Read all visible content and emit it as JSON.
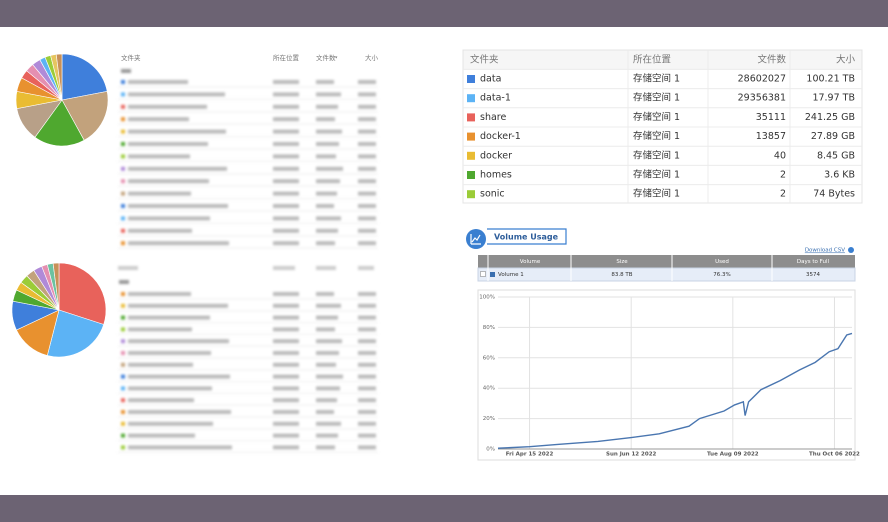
{
  "left_table_header": [
    "文件夹",
    "所在位置",
    "文件数",
    "大小"
  ],
  "folder_table": {
    "columns": [
      "文件夹",
      "所在位置",
      "文件数",
      "大小"
    ],
    "colors": [
      "#3f7fdb",
      "#5cb3f5",
      "#e8625b",
      "#e8912f",
      "#e9bc33",
      "#4fa82f",
      "#9bcc38"
    ],
    "rows": [
      [
        "data",
        "存储空间 1",
        28602027,
        "100.21 TB"
      ],
      [
        "data-1",
        "存储空间 1",
        29356381,
        "17.97 TB"
      ],
      [
        "share",
        "存储空间 1",
        35111,
        "241.25 GB"
      ],
      [
        "docker-1",
        "存储空间 1",
        13857,
        "27.89 GB"
      ],
      [
        "docker",
        "存储空间 1",
        40,
        "8.45 GB"
      ],
      [
        "homes",
        "存储空间 1",
        2,
        "3.6 KB"
      ],
      [
        "sonic",
        "存储空间 1",
        2,
        "74 Bytes"
      ]
    ]
  },
  "volume_usage": {
    "title": "Volume Usage",
    "download": "Download CSV",
    "table": {
      "columns": [
        "Volume",
        "Size",
        "Used",
        "Days to Full"
      ],
      "rows": [
        [
          "Volume 1",
          "83.8 TB",
          "76.3%",
          3574
        ]
      ]
    }
  },
  "chart_data": [
    {
      "type": "pie",
      "categories": [
        null,
        null,
        null,
        null,
        null,
        null,
        null,
        null,
        null,
        null,
        null,
        null,
        null
      ],
      "values": [
        22,
        20,
        18,
        12,
        6,
        5,
        3,
        3,
        3,
        2,
        2,
        2,
        2
      ],
      "colors": [
        "#3f7fdb",
        "#c2a27c",
        "#4fa82f",
        "#b8a088",
        "#e9bc33",
        "#e8912f",
        "#e8625b",
        "#e58fb0",
        "#b08ad8",
        "#5cb3f5",
        "#9bcc38",
        "#e6c560",
        "#c89058"
      ]
    },
    {
      "type": "pie",
      "categories": [
        null,
        null,
        null,
        null,
        null,
        null,
        null,
        null,
        null,
        null,
        null,
        null
      ],
      "values": [
        30,
        24,
        14,
        10,
        4,
        3,
        3,
        3,
        3,
        2,
        2,
        2
      ],
      "colors": [
        "#e8625b",
        "#5cb3f5",
        "#e8912f",
        "#3f7fdb",
        "#4fa82f",
        "#e9bc33",
        "#9bcc38",
        "#c2a27c",
        "#b08ad8",
        "#e58fb0",
        "#6cc2a0",
        "#c89058"
      ]
    },
    {
      "type": "line",
      "x": [
        "2022-03-28",
        "2022-04-15",
        "2022-05-01",
        "2022-05-24",
        "2022-06-12",
        "2022-06-28",
        "2022-07-15",
        "2022-07-21",
        "2022-08-04",
        "2022-08-10",
        "2022-08-15",
        "2022-08-16",
        "2022-08-18",
        "2022-08-25",
        "2022-09-05",
        "2022-09-16",
        "2022-09-25",
        "2022-10-03",
        "2022-10-08",
        "2022-10-13",
        "2022-10-16"
      ],
      "series": [
        {
          "color": "#4a76b0",
          "values": [
            0.5,
            1.5,
            3,
            5,
            7.5,
            10,
            15,
            20,
            25,
            29,
            31,
            22,
            31,
            39,
            45,
            52,
            57,
            64,
            66,
            75,
            76
          ]
        }
      ],
      "xlim": [
        "2022-03-28",
        "2022-10-16"
      ],
      "xticks": [
        {
          "value": "2022-04-15",
          "label": "Fri Apr 15 2022"
        },
        {
          "value": "2022-06-12",
          "label": "Sun Jun 12 2022"
        },
        {
          "value": "2022-08-09",
          "label": "Tue Aug 09 2022"
        },
        {
          "value": "2022-10-06",
          "label": "Thu Oct 06 2022"
        }
      ],
      "ylim": [
        0,
        100
      ],
      "yticks": [
        {
          "value": 0,
          "label": "0%"
        },
        {
          "value": 20,
          "label": "20%"
        },
        {
          "value": 40,
          "label": "40%"
        },
        {
          "value": 60,
          "label": "60%"
        },
        {
          "value": 80,
          "label": "80%"
        },
        {
          "value": 100,
          "label": "100%"
        }
      ],
      "grid": true
    }
  ]
}
